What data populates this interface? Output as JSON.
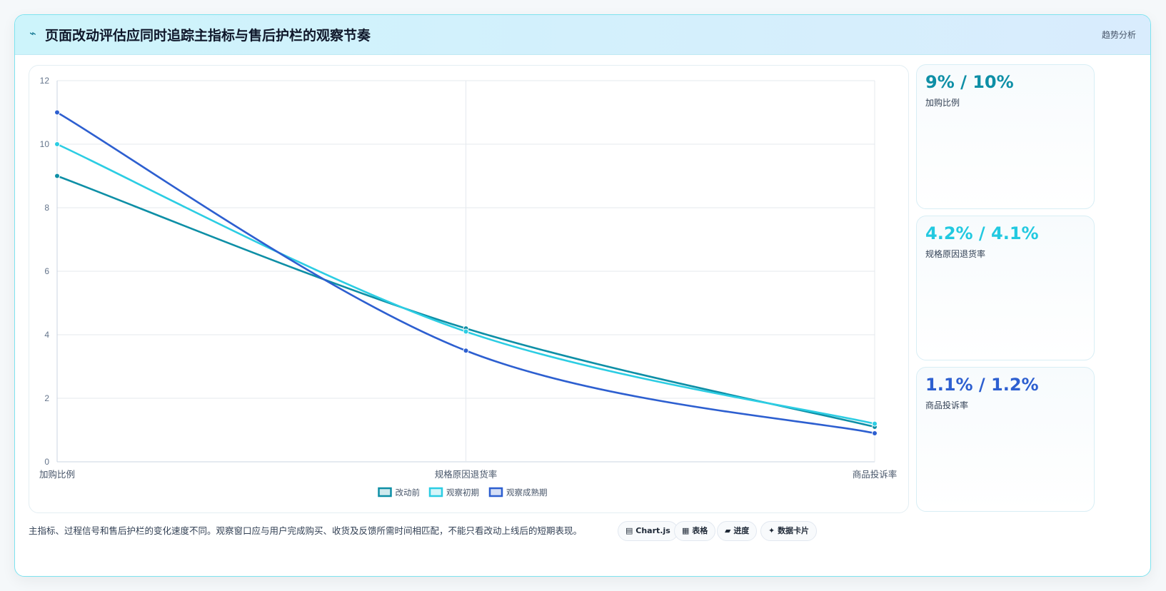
{
  "header": {
    "icon": "sparkle-icon",
    "title": "页面改动评估应同时追踪主指标与售后护栏的观察节奏",
    "tag": "趋势分析"
  },
  "stats": [
    {
      "value": "9% / 10%",
      "label": "加购比例",
      "color": "#0e8fa6"
    },
    {
      "value": "4.2% / 4.1%",
      "label": "规格原因退货率",
      "color": "#22c9e0"
    },
    {
      "value": "1.1% / 1.2%",
      "label": "商品投诉率",
      "color": "#2d5fd0"
    }
  ],
  "footer": {
    "note": "主指标、过程信号和售后护栏的变化速度不同。观察窗口应与用户完成购买、收货及反馈所需时间相匹配，不能只看改动上线后的短期表现。"
  },
  "chips": [
    {
      "icon": "chart-icon",
      "glyph": "▤",
      "label": "Chart.js"
    },
    {
      "icon": "table-icon",
      "glyph": "▦",
      "label": "表格"
    },
    {
      "icon": "progress-icon",
      "glyph": "▰",
      "label": "进度"
    },
    {
      "icon": "card-icon",
      "glyph": "✦",
      "label": "数据卡片"
    }
  ],
  "chart_data": {
    "type": "line",
    "categories": [
      "加购比例",
      "规格原因退货率",
      "商品投诉率"
    ],
    "series": [
      {
        "name": "改动前",
        "values": [
          9,
          4.2,
          1.1
        ],
        "color": "#0e8fa6"
      },
      {
        "name": "观察初期",
        "values": [
          10,
          4.1,
          1.2
        ],
        "color": "#2ccde3"
      },
      {
        "name": "观察成熟期",
        "values": [
          11,
          3.5,
          0.9
        ],
        "color": "#2d5fd0"
      }
    ],
    "ylim": [
      0,
      12
    ],
    "yticks": [
      0,
      2,
      4,
      6,
      8,
      10,
      12
    ],
    "grid": true,
    "legend": "bottom-center"
  }
}
